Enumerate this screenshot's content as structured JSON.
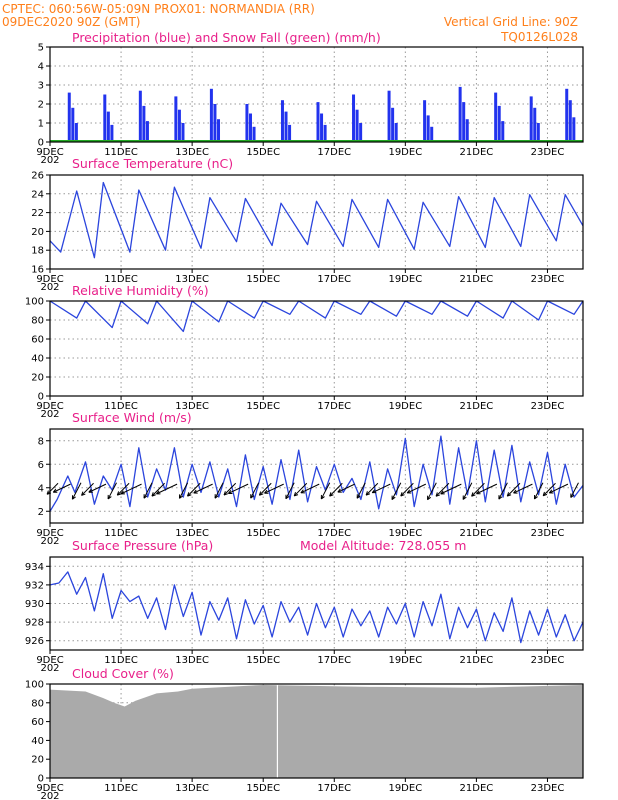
{
  "header": {
    "line1_left": "CPTEC:   060:56W-05:09N   PROX01: NORMANDIA (RR)",
    "line2_left": "09DEC2020 90Z (GMT)",
    "line2_right": "Vertical Grid Line: 90Z",
    "line3_right": "TQ0126L028"
  },
  "colors": {
    "header": "#ff7f1a",
    "title": "#e8208a",
    "precip": "#2233ee",
    "snow": "#22aa22",
    "line": "#2b45dd",
    "cloud": "#aaaaaa",
    "arrow": "#000000"
  },
  "x_axis": {
    "day_labels": [
      "9DEC",
      "11DEC",
      "13DEC",
      "15DEC",
      "17DEC",
      "19DEC",
      "21DEC",
      "23DEC"
    ],
    "day_values": [
      0,
      2,
      4,
      6,
      8,
      10,
      12,
      14
    ],
    "range_days": [
      0,
      15
    ],
    "cut_label": "202"
  },
  "chart_data": [
    {
      "type": "bar",
      "title": "Precipitation (blue) and Snow Fall (green) (mm/h)",
      "ylim": [
        0,
        5
      ],
      "yticks": [
        0,
        1,
        2,
        3,
        4,
        5
      ],
      "grid": true,
      "series": [
        {
          "name": "Precipitation",
          "x_days": [
            0.5,
            0.6,
            0.7,
            1.5,
            1.6,
            1.7,
            2.5,
            2.6,
            2.7,
            3.5,
            3.6,
            3.7,
            4.5,
            4.6,
            4.7,
            5.5,
            5.6,
            5.7,
            6.5,
            6.6,
            6.7,
            7.5,
            7.6,
            7.7,
            8.5,
            8.6,
            8.7,
            9.5,
            9.6,
            9.7,
            10.5,
            10.6,
            10.7,
            11.5,
            11.6,
            11.7,
            12.5,
            12.6,
            12.7,
            13.5,
            13.6,
            13.7,
            14.5,
            14.6,
            14.7
          ],
          "values": [
            2.6,
            1.8,
            1.0,
            2.5,
            1.6,
            0.9,
            2.7,
            1.9,
            1.1,
            2.4,
            1.7,
            1.0,
            2.8,
            2.0,
            1.2,
            2.0,
            1.5,
            0.8,
            2.2,
            1.6,
            0.9,
            2.1,
            1.5,
            0.9,
            2.5,
            1.7,
            1.0,
            2.7,
            1.8,
            1.0,
            2.2,
            1.4,
            0.8,
            2.9,
            2.1,
            1.2,
            2.6,
            1.9,
            1.1,
            2.4,
            1.8,
            1.0,
            2.8,
            2.2,
            1.3
          ]
        },
        {
          "name": "Snow Fall",
          "x_days": [
            0,
            15
          ],
          "values": [
            0,
            0
          ]
        }
      ]
    },
    {
      "type": "line",
      "title": "Surface Temperature (nC)",
      "ylim": [
        16,
        26
      ],
      "yticks": [
        16,
        18,
        20,
        22,
        24,
        26
      ],
      "grid": true,
      "series": [
        {
          "name": "Temperature",
          "x_days": [
            0.0,
            0.3,
            0.75,
            1.25,
            1.5,
            2.25,
            2.5,
            3.25,
            3.5,
            4.25,
            4.5,
            5.25,
            5.5,
            6.25,
            6.5,
            7.25,
            7.5,
            8.25,
            8.5,
            9.25,
            9.5,
            10.25,
            10.5,
            11.25,
            11.5,
            12.25,
            12.5,
            13.25,
            13.5,
            14.25,
            14.5,
            15.0
          ],
          "values": [
            19.0,
            17.8,
            24.3,
            17.2,
            25.2,
            17.8,
            24.4,
            18.0,
            24.7,
            18.2,
            23.6,
            18.9,
            23.5,
            18.5,
            23.0,
            18.6,
            23.2,
            18.4,
            23.4,
            18.3,
            23.4,
            18.1,
            23.1,
            18.4,
            23.7,
            18.3,
            23.6,
            18.4,
            23.9,
            19.0,
            23.9,
            20.6
          ]
        }
      ]
    },
    {
      "type": "line",
      "title": "Relative Humidity (%)",
      "ylim": [
        0,
        100
      ],
      "yticks": [
        0,
        20,
        40,
        60,
        80,
        100
      ],
      "grid": true,
      "series": [
        {
          "name": "Relative Humidity",
          "x_days": [
            0.0,
            0.75,
            1.0,
            1.75,
            2.0,
            2.75,
            3.0,
            3.75,
            4.0,
            4.75,
            5.0,
            5.75,
            6.0,
            6.75,
            7.0,
            7.75,
            8.0,
            8.75,
            9.0,
            9.75,
            10.0,
            10.75,
            11.0,
            11.75,
            12.0,
            12.75,
            13.0,
            13.75,
            14.0,
            14.75,
            15.0
          ],
          "values": [
            100,
            82,
            100,
            72,
            100,
            76,
            100,
            68,
            100,
            78,
            100,
            82,
            100,
            86,
            100,
            82,
            100,
            86,
            100,
            84,
            100,
            86,
            100,
            84,
            100,
            82,
            100,
            80,
            100,
            86,
            100
          ]
        }
      ]
    },
    {
      "type": "line",
      "title": "Surface Wind (m/s)",
      "ylim": [
        1,
        9
      ],
      "yticks": [
        2,
        4,
        6,
        8
      ],
      "grid": true,
      "series": [
        {
          "name": "Wind Speed",
          "x_days": [
            0.0,
            0.2,
            0.5,
            0.7,
            1.0,
            1.25,
            1.5,
            1.75,
            2.0,
            2.25,
            2.5,
            2.75,
            3.0,
            3.25,
            3.5,
            3.75,
            4.0,
            4.25,
            4.5,
            4.75,
            5.0,
            5.25,
            5.5,
            5.75,
            6.0,
            6.25,
            6.5,
            6.75,
            7.0,
            7.25,
            7.5,
            7.75,
            8.0,
            8.25,
            8.5,
            8.75,
            9.0,
            9.25,
            9.5,
            9.75,
            10.0,
            10.25,
            10.5,
            10.75,
            11.0,
            11.25,
            11.5,
            11.75,
            12.0,
            12.25,
            12.5,
            12.75,
            13.0,
            13.25,
            13.5,
            13.75,
            14.0,
            14.25,
            14.5,
            14.75,
            15.0
          ],
          "values": [
            2.0,
            3.0,
            5.0,
            3.6,
            6.2,
            2.6,
            5.0,
            3.8,
            6.0,
            2.4,
            7.4,
            3.2,
            5.6,
            3.8,
            7.4,
            3.2,
            6.0,
            3.6,
            6.2,
            3.2,
            5.6,
            2.4,
            6.8,
            3.0,
            5.8,
            2.6,
            6.4,
            3.0,
            7.2,
            2.8,
            5.8,
            3.8,
            6.0,
            3.6,
            4.8,
            3.0,
            6.2,
            2.2,
            5.6,
            3.4,
            8.2,
            2.4,
            6.0,
            3.4,
            8.4,
            2.6,
            7.4,
            3.4,
            8.0,
            2.8,
            7.2,
            3.2,
            7.6,
            2.8,
            6.2,
            3.4,
            7.0,
            2.6,
            6.0,
            3.2,
            4.2
          ]
        }
      ],
      "arrow_count": 45
    },
    {
      "type": "line",
      "title": "Surface Pressure (hPa)",
      "annotation": "Model Altitude: 728.055  m",
      "ylim": [
        925,
        935
      ],
      "yticks": [
        926,
        928,
        930,
        932,
        934
      ],
      "grid": true,
      "series": [
        {
          "name": "Pressure",
          "x_days": [
            0.0,
            0.25,
            0.5,
            0.75,
            1.0,
            1.25,
            1.5,
            1.75,
            2.0,
            2.25,
            2.5,
            2.75,
            3.0,
            3.25,
            3.5,
            3.75,
            4.0,
            4.25,
            4.5,
            4.75,
            5.0,
            5.25,
            5.5,
            5.75,
            6.0,
            6.25,
            6.5,
            6.75,
            7.0,
            7.25,
            7.5,
            7.75,
            8.0,
            8.25,
            8.5,
            8.75,
            9.0,
            9.25,
            9.5,
            9.75,
            10.0,
            10.25,
            10.5,
            10.75,
            11.0,
            11.25,
            11.5,
            11.75,
            12.0,
            12.25,
            12.5,
            12.75,
            13.0,
            13.25,
            13.5,
            13.75,
            14.0,
            14.25,
            14.5,
            14.75,
            15.0
          ],
          "values": [
            932.0,
            932.2,
            933.4,
            931.0,
            932.8,
            929.2,
            933.2,
            928.4,
            931.4,
            930.2,
            930.8,
            928.4,
            930.6,
            927.2,
            932.0,
            928.6,
            931.2,
            926.6,
            930.2,
            928.2,
            930.6,
            926.2,
            930.4,
            927.8,
            929.8,
            926.4,
            930.2,
            928.0,
            929.6,
            926.6,
            930.0,
            927.4,
            929.6,
            926.4,
            929.4,
            927.6,
            929.2,
            926.4,
            929.6,
            927.8,
            930.0,
            926.4,
            930.2,
            927.6,
            931.0,
            926.2,
            929.6,
            927.4,
            929.4,
            926.0,
            929.0,
            927.0,
            930.6,
            925.8,
            929.2,
            926.6,
            929.4,
            926.4,
            928.8,
            926.0,
            928.0
          ]
        }
      ]
    },
    {
      "type": "area",
      "title": "Cloud Cover (%)",
      "ylim": [
        0,
        100
      ],
      "yticks": [
        0,
        20,
        40,
        60,
        80,
        100
      ],
      "grid": true,
      "series": [
        {
          "name": "Cloud Cover",
          "x_days": [
            0.0,
            1.0,
            1.5,
            1.8,
            2.1,
            2.4,
            3.0,
            3.6,
            4.0,
            6.0,
            9.0,
            12.0,
            15.0
          ],
          "values": [
            94,
            92,
            85,
            80,
            76,
            82,
            90,
            92,
            95,
            99,
            97,
            96,
            99
          ]
        }
      ]
    }
  ]
}
